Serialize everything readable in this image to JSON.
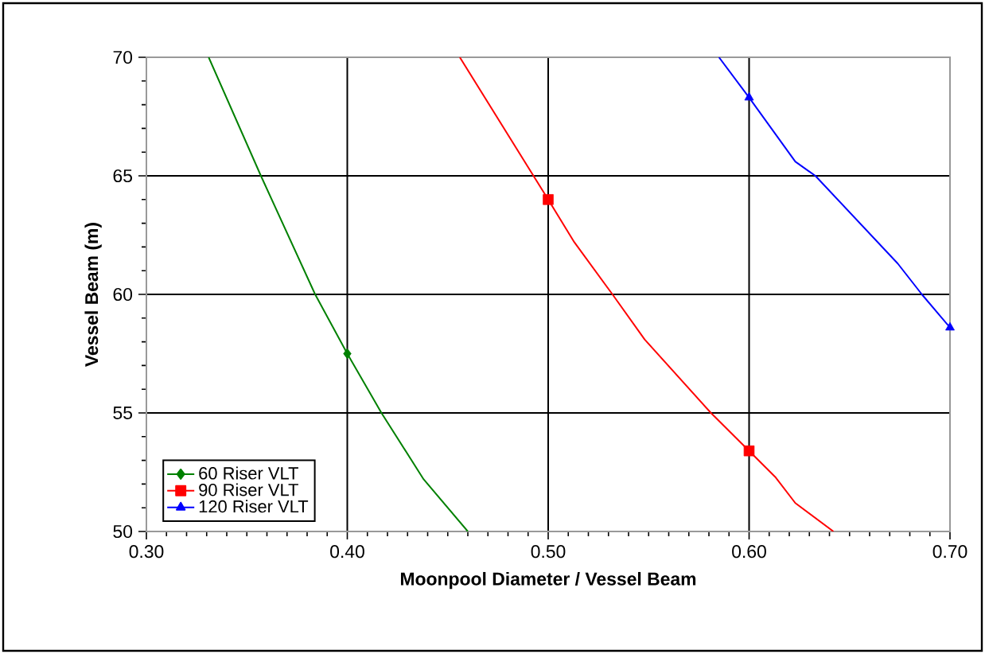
{
  "chart_data": {
    "type": "line",
    "xlabel": "Moonpool Diameter / Vessel Beam",
    "ylabel": "Vessel Beam (m)",
    "xlim": [
      0.3,
      0.7
    ],
    "ylim": [
      50,
      70
    ],
    "xticks": [
      {
        "value": 0.3,
        "label": "0.30"
      },
      {
        "value": 0.4,
        "label": "0.40"
      },
      {
        "value": 0.5,
        "label": "0.50"
      },
      {
        "value": 0.6,
        "label": "0.60"
      },
      {
        "value": 0.7,
        "label": "0.70"
      }
    ],
    "yticks": [
      50,
      55,
      60,
      65,
      70
    ],
    "grid": true,
    "legend": "bottom left",
    "line_style": "solid",
    "series": [
      {
        "name": "60 Riser VLT",
        "color": "#008000",
        "x": [
          0.331,
          0.357,
          0.384,
          0.4,
          0.417,
          0.438,
          0.46
        ],
        "values": [
          70,
          65,
          60,
          57.5,
          55,
          52.2,
          50
        ]
      },
      {
        "name": "90 Riser VLT",
        "color": "#ff0000",
        "x": [
          0.456,
          0.5,
          0.513,
          0.532,
          0.548,
          0.581,
          0.6,
          0.613,
          0.623,
          0.642
        ],
        "values": [
          70,
          64,
          62.2,
          60,
          58.1,
          55,
          53.4,
          52.3,
          51.2,
          50
        ]
      },
      {
        "name": "120 Riser VLT",
        "color": "#0000ff",
        "x": [
          0.585,
          0.6,
          0.623,
          0.633,
          0.674,
          0.686,
          0.7
        ],
        "values": [
          70,
          68.3,
          65.6,
          65,
          61.3,
          60,
          58.6
        ]
      },
      {
        "type": "scatter",
        "color": "#008000",
        "marker": "diamond",
        "x": [
          0.4
        ],
        "values": [
          57.5
        ]
      },
      {
        "type": "scatter",
        "color": "#ff0000",
        "marker": "square",
        "x": [
          0.5,
          0.6
        ],
        "values": [
          64,
          53.4
        ]
      },
      {
        "type": "scatter",
        "color": "#0000ff",
        "marker": "triangle",
        "x": [
          0.6,
          0.7
        ],
        "values": [
          68.3,
          58.6
        ]
      }
    ]
  }
}
